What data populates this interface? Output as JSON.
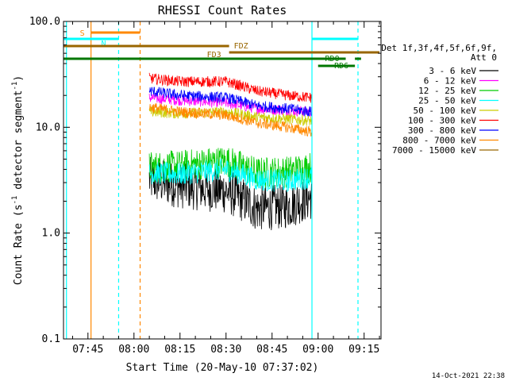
{
  "chart_data": {
    "type": "line",
    "title": "RHESSI Count Rates",
    "xlabel": "Start Time (20-May-10 07:37:02)",
    "ylabel_main": "Count Rate (s",
    "ylabel_sup1": "-1",
    "ylabel_mid": " detector segment",
    "ylabel_sup2": "-1",
    "ylabel_end": ")",
    "yscale": "log",
    "ylim": [
      0.1,
      100.0
    ],
    "yticks": [
      "0.1",
      "1.0",
      "10.0",
      "100.0"
    ],
    "xlim": [
      "07:37:02",
      "09:20:30"
    ],
    "xticks": [
      "07:45",
      "08:00",
      "08:15",
      "08:30",
      "08:45",
      "09:00",
      "09:15"
    ],
    "legend_header": [
      "Det 1f,3f,4f,5f,6f,9f,",
      "Att 0"
    ],
    "legend_position": "right",
    "data_interval": [
      "08:05",
      "08:58"
    ],
    "series": [
      {
        "name": "3 - 6 keV",
        "color": "#000000",
        "values_approx": {
          "08:05": 3.2,
          "08:15": 2.8,
          "08:30": 2.5,
          "08:40": 1.7,
          "08:50": 1.8,
          "08:58": 2.2
        }
      },
      {
        "name": "6 - 12 keV",
        "color": "#ff00ff",
        "values_approx": {
          "08:05": 19.0,
          "08:15": 18.0,
          "08:30": 17.0,
          "08:40": 15.0,
          "08:50": 14.5,
          "08:58": 14.0
        }
      },
      {
        "name": "12 - 25 keV",
        "color": "#00cc00",
        "values_approx": {
          "08:05": 4.2,
          "08:15": 4.3,
          "08:30": 4.8,
          "08:40": 3.7,
          "08:50": 3.8,
          "08:58": 4.2
        }
      },
      {
        "name": "25 - 50 keV",
        "color": "#00ffff",
        "values_approx": {
          "08:05": 3.7,
          "08:15": 3.6,
          "08:30": 4.0,
          "08:40": 3.2,
          "08:50": 3.1,
          "08:58": 3.4
        }
      },
      {
        "name": "50 - 100 keV",
        "color": "#cccc00",
        "values_approx": {
          "08:05": 14.0,
          "08:15": 13.5,
          "08:30": 14.0,
          "08:40": 12.5,
          "08:50": 12.0,
          "08:58": 11.5
        }
      },
      {
        "name": "100 - 300 keV",
        "color": "#ff0000",
        "values_approx": {
          "08:05": 29.0,
          "08:15": 27.0,
          "08:30": 27.0,
          "08:40": 22.0,
          "08:50": 20.0,
          "08:58": 19.0
        }
      },
      {
        "name": "300 - 800 keV",
        "color": "#0000ff",
        "values_approx": {
          "08:05": 22.0,
          "08:15": 20.0,
          "08:30": 19.0,
          "08:40": 16.0,
          "08:50": 15.0,
          "08:58": 14.0
        }
      },
      {
        "name": "800 - 7000 keV",
        "color": "#ff8800",
        "values_approx": {
          "08:05": 15.5,
          "08:15": 14.0,
          "08:30": 13.0,
          "08:40": 11.0,
          "08:50": 10.0,
          "08:58": 9.0
        }
      },
      {
        "name": "7000 - 15000 keV",
        "color": "#996600",
        "values_approx": {}
      }
    ],
    "flag_bars": [
      {
        "label": "S",
        "color": "#ff8800",
        "start": "07:46",
        "end": "08:02"
      },
      {
        "label": "N",
        "color": "#00ffff",
        "start": "07:37",
        "end": "07:55"
      },
      {
        "label": "N",
        "color": "#00ffff",
        "start": "08:58",
        "end": "09:13"
      },
      {
        "label": "FDZ",
        "color": "#996600",
        "start": "07:37",
        "end": "08:31"
      },
      {
        "label": "FD3",
        "color": "#996600",
        "start": "08:31",
        "end": "09:20"
      },
      {
        "label": "RD0",
        "color": "#007700",
        "start": "07:37",
        "end": "09:09"
      },
      {
        "label": "RD0",
        "color": "#007700",
        "start": "09:12",
        "end": "09:14"
      },
      {
        "label": "RD6",
        "color": "#007700",
        "start": "09:00",
        "end": "09:12"
      }
    ],
    "vertical_markers": [
      {
        "time": "07:38",
        "color": "#00ffff",
        "style": "solid"
      },
      {
        "time": "07:46",
        "color": "#ff8800",
        "style": "solid"
      },
      {
        "time": "07:55",
        "color": "#00ffff",
        "style": "dashed"
      },
      {
        "time": "08:02",
        "color": "#ff8800",
        "style": "dashed"
      },
      {
        "time": "08:58",
        "color": "#00ffff",
        "style": "solid"
      },
      {
        "time": "09:13",
        "color": "#00ffff",
        "style": "dashed"
      }
    ],
    "timestamp": "14-Oct-2021 22:38"
  }
}
